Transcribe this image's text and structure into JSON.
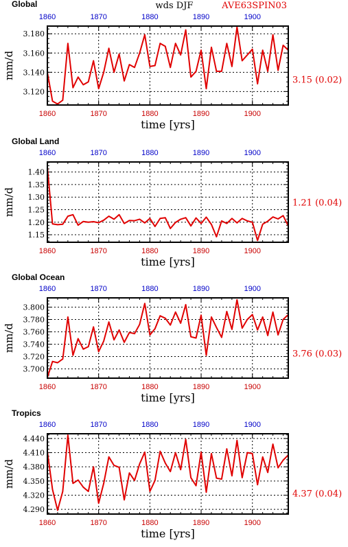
{
  "header": {
    "left": "Global",
    "center": "wds DJF",
    "right": "AVE63SPIN03"
  },
  "colors": {
    "series": "#e00000",
    "top_ticks": "#0000c8",
    "bottom_ticks": "#c80000",
    "stat": "#e00000"
  },
  "panels": [
    {
      "title": "",
      "ylabel": "mm/d",
      "xlabel": "time [yrs]",
      "stat": "3.15 (0.02)",
      "yticks": [
        "3.120",
        "3.140",
        "3.160",
        "3.180"
      ],
      "xticks": [
        "1860",
        "1870",
        "1880",
        "1890",
        "1900"
      ]
    },
    {
      "title": "Global Land",
      "ylabel": "mm/d",
      "xlabel": "time [yrs]",
      "stat": "1.21 (0.04)",
      "yticks": [
        "1.15",
        "1.20",
        "1.25",
        "1.30",
        "1.35",
        "1.40"
      ],
      "xticks": [
        "1860",
        "1870",
        "1880",
        "1890",
        "1900"
      ]
    },
    {
      "title": "Global Ocean",
      "ylabel": "mm/d",
      "xlabel": "time [yrs]",
      "stat": "3.76 (0.03)",
      "yticks": [
        "3.700",
        "3.720",
        "3.740",
        "3.760",
        "3.780",
        "3.800"
      ],
      "xticks": [
        "1860",
        "1870",
        "1880",
        "1890",
        "1900"
      ]
    },
    {
      "title": "Tropics",
      "ylabel": "mm/d",
      "xlabel": "time [yrs]",
      "stat": "4.37 (0.04)",
      "yticks": [
        "4.290",
        "4.320",
        "4.350",
        "4.380",
        "4.410",
        "4.440"
      ],
      "xticks": [
        "1860",
        "1870",
        "1880",
        "1890",
        "1900"
      ]
    }
  ],
  "chart_data": [
    {
      "type": "line",
      "title": "Global",
      "xlabel": "time [yrs]",
      "ylabel": "mm/d",
      "xlim": [
        1860,
        1907
      ],
      "ylim": [
        3.106,
        3.188
      ],
      "grid": true,
      "x": [
        1860,
        1861,
        1862,
        1863,
        1864,
        1865,
        1866,
        1867,
        1868,
        1869,
        1870,
        1871,
        1872,
        1873,
        1874,
        1875,
        1876,
        1877,
        1878,
        1879,
        1880,
        1881,
        1882,
        1883,
        1884,
        1885,
        1886,
        1887,
        1888,
        1889,
        1890,
        1891,
        1892,
        1893,
        1894,
        1895,
        1896,
        1897,
        1898,
        1899,
        1900,
        1901,
        1902,
        1903,
        1904,
        1905,
        1906,
        1907
      ],
      "series": [
        {
          "values": [
            3.14,
            3.11,
            3.107,
            3.111,
            3.17,
            3.124,
            3.135,
            3.127,
            3.13,
            3.152,
            3.123,
            3.14,
            3.165,
            3.14,
            3.159,
            3.131,
            3.148,
            3.145,
            3.16,
            3.179,
            3.146,
            3.147,
            3.17,
            3.167,
            3.145,
            3.17,
            3.158,
            3.184,
            3.135,
            3.141,
            3.163,
            3.123,
            3.166,
            3.141,
            3.141,
            3.17,
            3.146,
            3.187,
            3.152,
            3.158,
            3.164,
            3.128,
            3.163,
            3.141,
            3.179,
            3.142,
            3.168,
            3.163
          ]
        }
      ]
    },
    {
      "type": "line",
      "title": "Global Land",
      "xlabel": "time [yrs]",
      "ylabel": "mm/d",
      "xlim": [
        1860,
        1907
      ],
      "ylim": [
        1.12,
        1.44
      ],
      "grid": true,
      "x": [
        1860,
        1861,
        1862,
        1863,
        1864,
        1865,
        1866,
        1867,
        1868,
        1869,
        1870,
        1871,
        1872,
        1873,
        1874,
        1875,
        1876,
        1877,
        1878,
        1879,
        1880,
        1881,
        1882,
        1883,
        1884,
        1885,
        1886,
        1887,
        1888,
        1889,
        1890,
        1891,
        1892,
        1893,
        1894,
        1895,
        1896,
        1897,
        1898,
        1899,
        1900,
        1901,
        1902,
        1903,
        1904,
        1905,
        1906,
        1907
      ],
      "series": [
        {
          "values": [
            1.42,
            1.193,
            1.19,
            1.192,
            1.224,
            1.23,
            1.188,
            1.203,
            1.2,
            1.202,
            1.198,
            1.208,
            1.224,
            1.212,
            1.23,
            1.195,
            1.207,
            1.206,
            1.212,
            1.197,
            1.215,
            1.183,
            1.215,
            1.218,
            1.175,
            1.199,
            1.212,
            1.218,
            1.185,
            1.217,
            1.195,
            1.22,
            1.191,
            1.142,
            1.205,
            1.195,
            1.215,
            1.197,
            1.215,
            1.205,
            1.2,
            1.127,
            1.192,
            1.204,
            1.221,
            1.213,
            1.226,
            1.185
          ]
        }
      ]
    },
    {
      "type": "line",
      "title": "Global Ocean",
      "xlabel": "time [yrs]",
      "ylabel": "mm/d",
      "xlim": [
        1860,
        1907
      ],
      "ylim": [
        3.685,
        3.815
      ],
      "grid": true,
      "x": [
        1860,
        1861,
        1862,
        1863,
        1864,
        1865,
        1866,
        1867,
        1868,
        1869,
        1870,
        1871,
        1872,
        1873,
        1874,
        1875,
        1876,
        1877,
        1878,
        1879,
        1880,
        1881,
        1882,
        1883,
        1884,
        1885,
        1886,
        1887,
        1888,
        1889,
        1890,
        1891,
        1892,
        1893,
        1894,
        1895,
        1896,
        1897,
        1898,
        1899,
        1900,
        1901,
        1902,
        1903,
        1904,
        1905,
        1906,
        1907
      ],
      "series": [
        {
          "values": [
            3.686,
            3.712,
            3.71,
            3.716,
            3.784,
            3.722,
            3.749,
            3.732,
            3.736,
            3.768,
            3.728,
            3.745,
            3.776,
            3.747,
            3.763,
            3.743,
            3.759,
            3.757,
            3.772,
            3.806,
            3.755,
            3.765,
            3.786,
            3.782,
            3.771,
            3.792,
            3.774,
            3.804,
            3.752,
            3.75,
            3.787,
            3.722,
            3.784,
            3.767,
            3.751,
            3.793,
            3.764,
            3.812,
            3.766,
            3.78,
            3.788,
            3.763,
            3.784,
            3.754,
            3.792,
            3.755,
            3.78,
            3.788
          ]
        }
      ]
    },
    {
      "type": "line",
      "title": "Tropics",
      "xlabel": "time [yrs]",
      "ylabel": "mm/d",
      "xlim": [
        1860,
        1907
      ],
      "ylim": [
        4.28,
        4.45
      ],
      "grid": true,
      "x": [
        1860,
        1861,
        1862,
        1863,
        1864,
        1865,
        1866,
        1867,
        1868,
        1869,
        1870,
        1871,
        1872,
        1873,
        1874,
        1875,
        1876,
        1877,
        1878,
        1879,
        1880,
        1881,
        1882,
        1883,
        1884,
        1885,
        1886,
        1887,
        1888,
        1889,
        1890,
        1891,
        1892,
        1893,
        1894,
        1895,
        1896,
        1897,
        1898,
        1899,
        1900,
        1901,
        1902,
        1903,
        1904,
        1905,
        1906,
        1907
      ],
      "series": [
        {
          "values": [
            4.413,
            4.332,
            4.288,
            4.328,
            4.447,
            4.345,
            4.352,
            4.337,
            4.328,
            4.38,
            4.303,
            4.345,
            4.401,
            4.383,
            4.379,
            4.31,
            4.367,
            4.351,
            4.386,
            4.411,
            4.328,
            4.351,
            4.413,
            4.388,
            4.37,
            4.41,
            4.374,
            4.438,
            4.357,
            4.34,
            4.411,
            4.326,
            4.408,
            4.356,
            4.354,
            4.418,
            4.361,
            4.436,
            4.357,
            4.41,
            4.408,
            4.342,
            4.401,
            4.368,
            4.428,
            4.378,
            4.394,
            4.405
          ]
        }
      ]
    }
  ]
}
